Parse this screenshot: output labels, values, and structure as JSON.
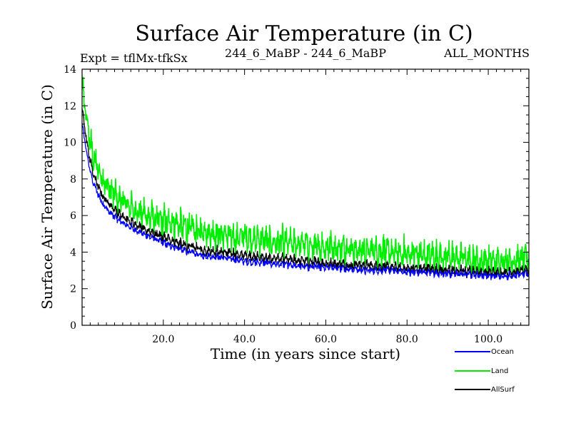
{
  "chart_data": {
    "type": "line",
    "title": "Surface Air Temperature (in C)",
    "subtitle_left": "Expt = tflMx-tfkSx",
    "subtitle_center": "244_6_MaBP - 244_6_MaBP",
    "subtitle_right": "ALL_MONTHS",
    "xlabel": "Time (in years since start)",
    "ylabel": "Surface Air Temperature (in C)",
    "xlim": [
      0,
      110
    ],
    "ylim": [
      0,
      14
    ],
    "xticks": [
      20,
      40,
      60,
      80,
      100
    ],
    "xtick_labels": [
      "20.0",
      "40.0",
      "60.0",
      "80.0",
      "100.0"
    ],
    "yticks": [
      0,
      2,
      4,
      6,
      8,
      10,
      12,
      14
    ],
    "ytick_labels": [
      "0",
      "2",
      "4",
      "6",
      "8",
      "10",
      "12",
      "14"
    ],
    "x": [
      0,
      1,
      2,
      3,
      5,
      7,
      10,
      15,
      20,
      25,
      30,
      35,
      40,
      45,
      50,
      55,
      60,
      65,
      70,
      75,
      80,
      85,
      90,
      95,
      100,
      105,
      110
    ],
    "series": [
      {
        "name": "Ocean",
        "color": "#0000ff",
        "values": [
          11.0,
          9.6,
          8.4,
          7.6,
          6.7,
          6.1,
          5.6,
          5.0,
          4.5,
          4.1,
          3.8,
          3.7,
          3.5,
          3.4,
          3.3,
          3.2,
          3.2,
          3.1,
          3.0,
          3.0,
          2.9,
          2.9,
          2.8,
          2.8,
          2.7,
          2.7,
          2.8
        ],
        "noise": 0.25
      },
      {
        "name": "Land",
        "color": "#00ee00",
        "values": [
          13.0,
          11.5,
          10.0,
          9.0,
          8.0,
          7.3,
          6.7,
          6.1,
          5.7,
          5.4,
          5.1,
          4.9,
          4.8,
          4.6,
          4.5,
          4.4,
          4.3,
          4.2,
          4.1,
          4.0,
          3.9,
          3.8,
          3.7,
          3.6,
          3.5,
          3.5,
          3.6
        ],
        "noise": 1.0
      },
      {
        "name": "AllSurf",
        "color": "#000000",
        "values": [
          11.8,
          10.2,
          9.0,
          8.1,
          7.1,
          6.5,
          5.9,
          5.3,
          4.8,
          4.4,
          4.1,
          4.0,
          3.8,
          3.7,
          3.6,
          3.5,
          3.4,
          3.3,
          3.3,
          3.2,
          3.1,
          3.1,
          3.0,
          3.0,
          2.9,
          2.9,
          3.0
        ],
        "noise": 0.35
      }
    ],
    "legend": [
      "Ocean",
      "Land",
      "AllSurf"
    ],
    "legend_position": "bottom-right"
  }
}
